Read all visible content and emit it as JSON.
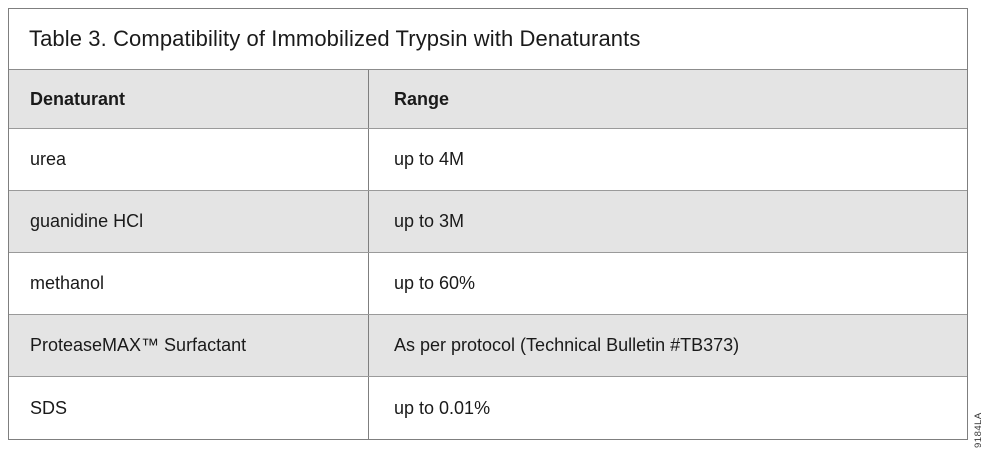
{
  "figure": {
    "title": "Table 3. Compatibility of Immobilized Trypsin with Denaturants",
    "table": {
      "columns": [
        "Denaturant",
        "Range"
      ],
      "rows": [
        {
          "denaturant": "urea",
          "range": "up to 4M"
        },
        {
          "denaturant": "guanidine HCl",
          "range": "up to 3M"
        },
        {
          "denaturant": "methanol",
          "range": "up to 60%"
        },
        {
          "denaturant": "ProteaseMAX™ Surfactant",
          "range": "As per protocol (Technical Bulletin #TB373)"
        },
        {
          "denaturant": "SDS",
          "range": "up to 0.01%"
        }
      ]
    },
    "side_label": "9184LA",
    "colors": {
      "row_shaded": "#e4e4e4",
      "row_plain": "#ffffff",
      "border_outer": "#7f7f7f",
      "border_row": "#9a9a9a",
      "text": "#1a1a1a"
    }
  }
}
